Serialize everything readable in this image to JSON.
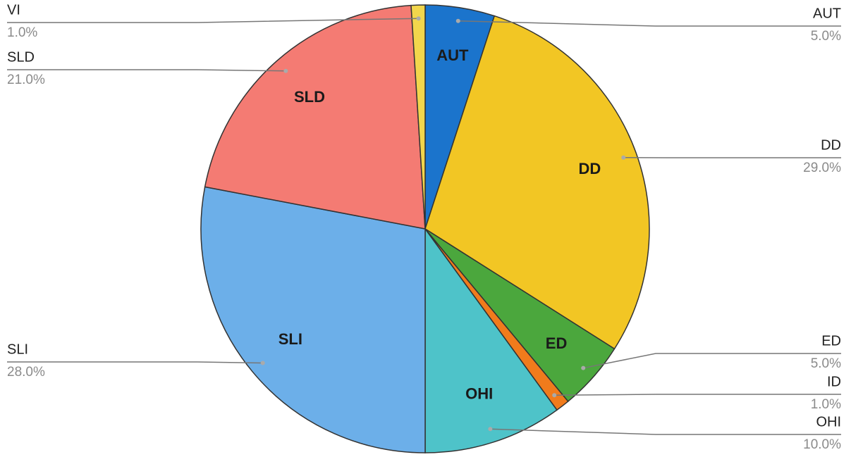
{
  "chart_data": {
    "type": "pie",
    "categories": [
      "AUT",
      "DD",
      "ED",
      "ID",
      "OHI",
      "SLI",
      "SLD",
      "VI"
    ],
    "values": [
      5,
      29,
      5,
      1,
      10,
      28,
      21,
      1
    ],
    "value_labels": [
      "5.0%",
      "29.0%",
      "5.0%",
      "1.0%",
      "10.0%",
      "28.0%",
      "21.0%",
      "1.0%"
    ],
    "colors": [
      "#1b74cc",
      "#f2c624",
      "#4ba73d",
      "#f07b1c",
      "#4ec3c9",
      "#6cafe9",
      "#f47b73",
      "#f2d64c"
    ]
  }
}
